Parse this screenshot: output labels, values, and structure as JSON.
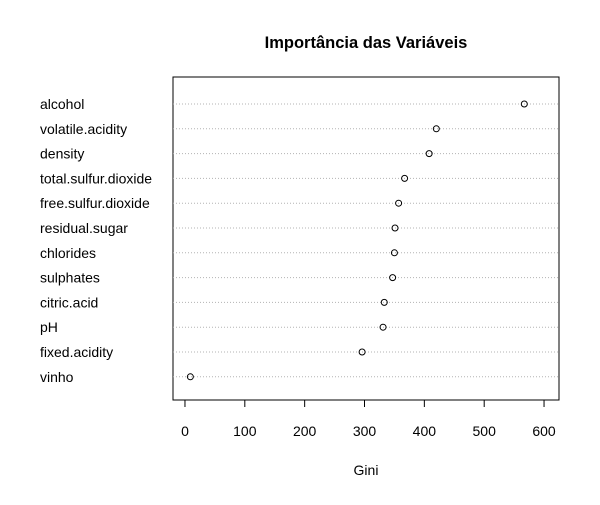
{
  "chart_data": {
    "type": "scatter",
    "title": "Importância das Variáveis",
    "xlabel": "Gini",
    "ylabel": "",
    "xlim": [
      -20,
      625
    ],
    "x_ticks": [
      "0",
      "100",
      "200",
      "300",
      "400",
      "500",
      "600"
    ],
    "grid": "dotted horizontal reference lines per variable",
    "categories": [
      "alcohol",
      "volatile.acidity",
      "density",
      "total.sulfur.dioxide",
      "free.sulfur.dioxide",
      "residual.sugar",
      "chlorides",
      "sulphates",
      "citric.acid",
      "pH",
      "fixed.acidity",
      "vinho"
    ],
    "values": [
      567,
      420,
      408,
      367,
      357,
      351,
      350,
      347,
      333,
      331,
      296,
      9
    ]
  }
}
